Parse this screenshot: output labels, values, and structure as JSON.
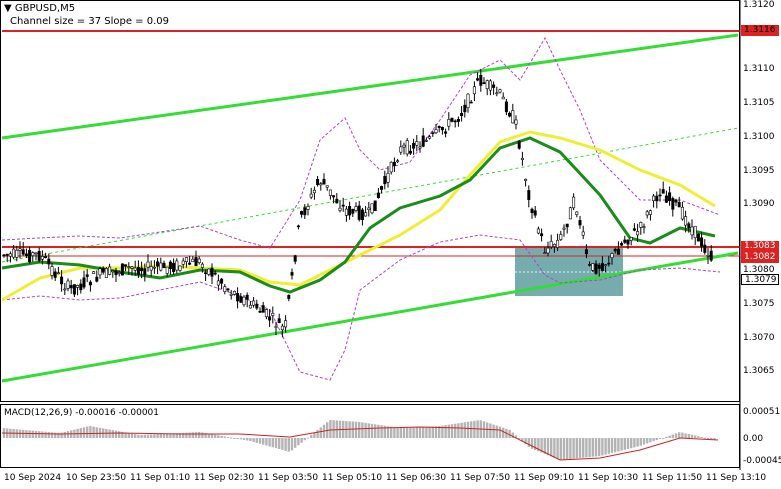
{
  "header": {
    "symbol": "GBPUSD,M5",
    "indicator_text": "Channel size = 37 Slope = 0.09"
  },
  "macd": {
    "label": "MACD(12,26,9) -0.00016 -0.00001",
    "axis": [
      "0.00051",
      "0.00",
      "-0.00045"
    ]
  },
  "price_axis": [
    "1.3120",
    "1.3110",
    "1.3105",
    "1.3100",
    "1.3095",
    "1.3090",
    "1.3080",
    "1.3075",
    "1.3070",
    "1.3065"
  ],
  "price_tags": {
    "resistance": "1.3116",
    "level_1": "1.3083",
    "level_2": "1.3082",
    "current": "1.3079"
  },
  "time_axis": [
    "10 Sep 2024",
    "10 Sep 23:50",
    "11 Sep 01:10",
    "11 Sep 02:30",
    "11 Sep 03:50",
    "11 Sep 05:10",
    "11 Sep 06:30",
    "11 Sep 07:50",
    "11 Sep 09:10",
    "11 Sep 10:30",
    "11 Sep 11:50",
    "11 Sep 13:10"
  ],
  "colors": {
    "channel": "#33dd33",
    "ma_fast": "#1a8c1a",
    "ma_slow": "#eeee33",
    "resistance_line": "#dd2222",
    "zone": "#5f9ea0",
    "macd_hist": "#b4b4b4",
    "macd_signal": "#cc2222",
    "bollinger": "#aa44cc"
  }
}
